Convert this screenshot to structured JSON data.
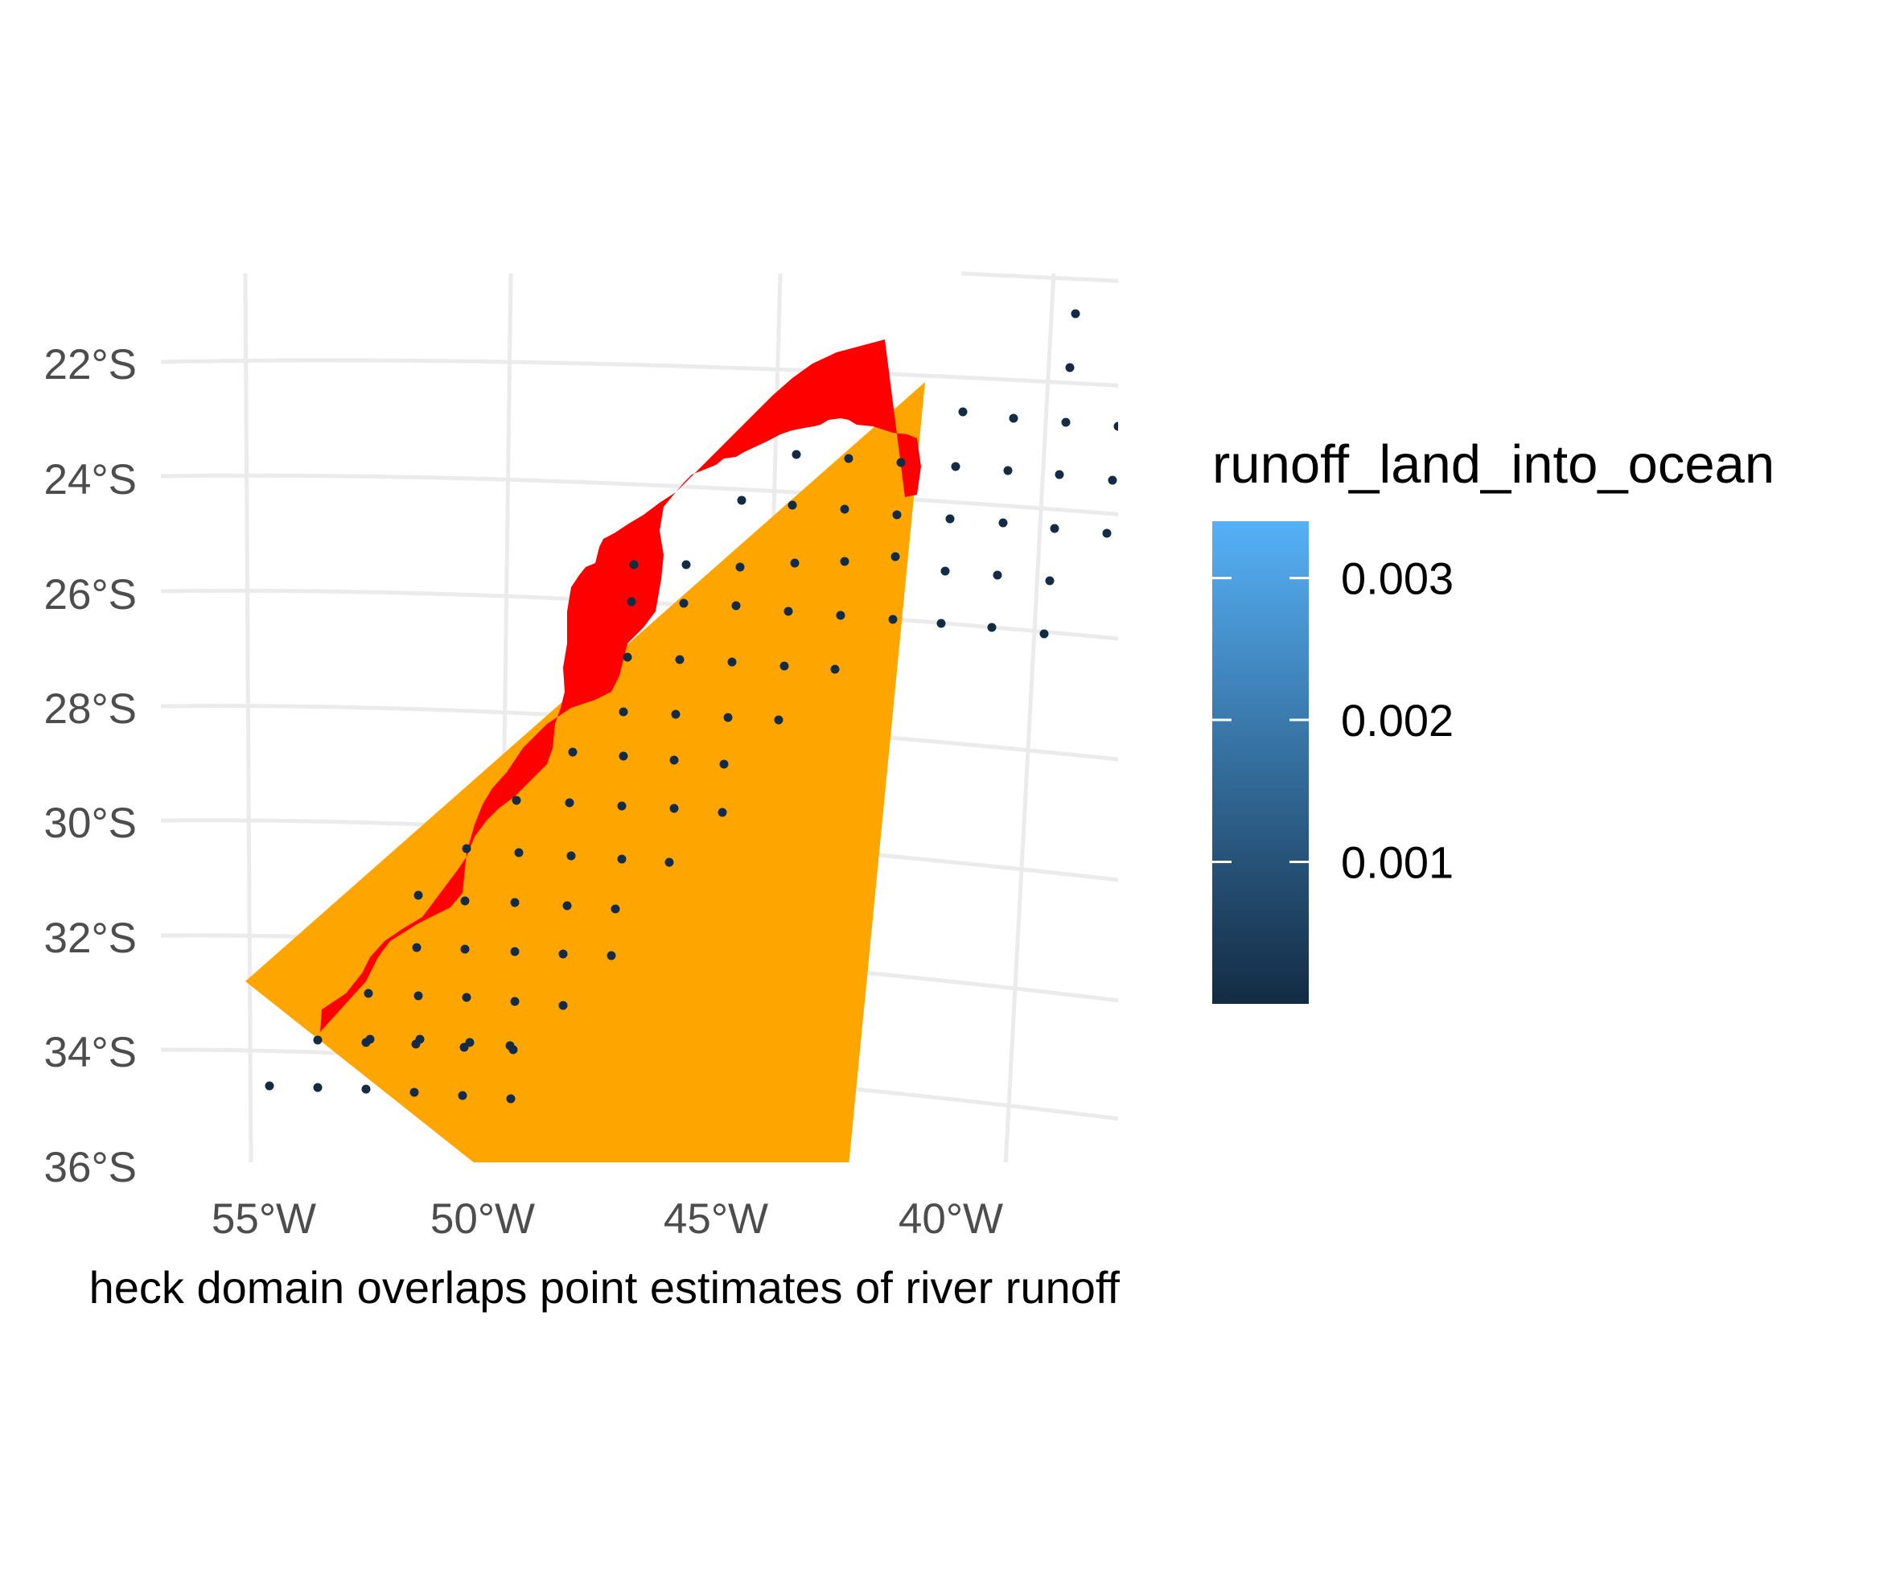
{
  "map": {
    "caption": "heck domain overlaps point estimates of river runoff",
    "lat_labels": [
      "22°S",
      "24°S",
      "26°S",
      "28°S",
      "30°S",
      "32°S",
      "34°S",
      "36°S"
    ],
    "lon_labels": [
      "55°W",
      "50°W",
      "45°W",
      "40°W"
    ],
    "domain_color": "#FFA500",
    "coast_color": "#FF0000",
    "point_color": "#132B43",
    "grid_color": "#EBEBEB",
    "layers": [
      "domain-polygon",
      "coastal-land-strip",
      "runoff-points",
      "graticule"
    ]
  },
  "legend": {
    "title": "runoff_land_into_ocean",
    "ticks": [
      "0.003",
      "0.002",
      "0.001"
    ],
    "tick_values": [
      0.003,
      0.002,
      0.001
    ],
    "value_range": [
      0.0,
      0.0034
    ],
    "gradient_low": "#132B43",
    "gradient_high": "#56B1F7"
  }
}
